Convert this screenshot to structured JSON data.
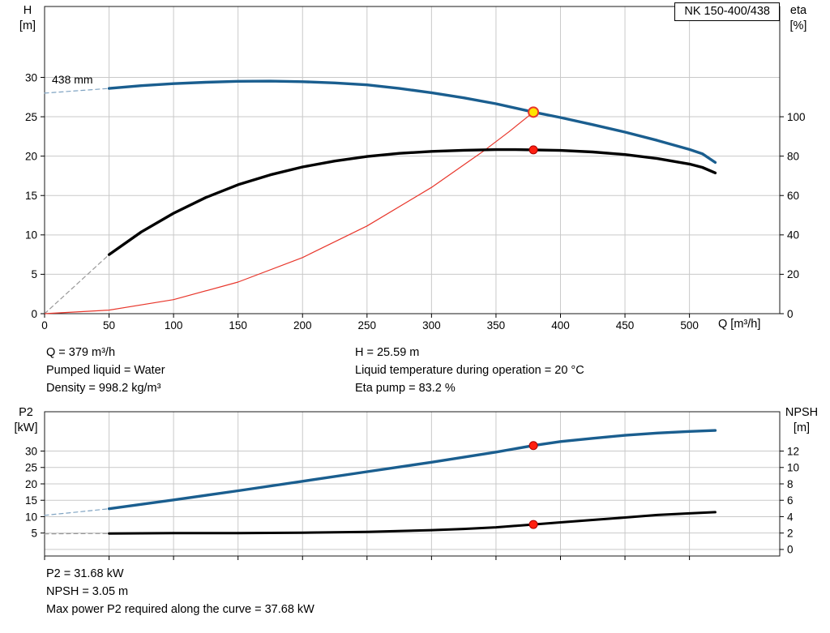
{
  "title_box": {
    "label": "NK 150-400/438"
  },
  "axes_labels": {
    "h": "H",
    "h_unit": "[m]",
    "eta": "eta",
    "eta_unit": "[%]",
    "x": "Q [m³/h]",
    "p2": "P2",
    "p2_unit": "[kW]",
    "npsh": "NPSH",
    "npsh_unit": "[m]"
  },
  "info_top": {
    "left": [
      "Q = 379 m³/h",
      "Pumped liquid = Water",
      "Density = 998.2 kg/m³"
    ],
    "right": [
      "H = 25.59 m",
      "Liquid temperature during operation = 20 °C",
      "Eta pump = 83.2 %"
    ]
  },
  "info_bottom": [
    "P2 = 31.68 kW",
    "NPSH = 3.05 m",
    "Max power P2 required along the curve = 37.68 kW"
  ],
  "colors": {
    "curve_blue": "#1a5e8f",
    "curve_black": "#000000",
    "system_curve_red": "#e8362b",
    "marker_red": "#ff1f10",
    "marker_yellow": "#ffe400",
    "grid": "#c9c9c9",
    "border": "#1a1a1a",
    "dash_blue": "#7fa3c2",
    "dash_gray": "#999999"
  },
  "chart_data": [
    {
      "type": "line",
      "name": "head-efficiency-chart",
      "title": "NK 150-400/438",
      "x_axis": {
        "label": "Q [m³/h]",
        "min": 0,
        "max": 570,
        "ticks": [
          0,
          50,
          100,
          150,
          200,
          250,
          300,
          350,
          400,
          450,
          500
        ],
        "show_labels": true
      },
      "y_left": {
        "label": "H [m]",
        "min": 0,
        "max": 39,
        "ticks": [
          0,
          5,
          10,
          15,
          20,
          25,
          30
        ]
      },
      "y_right": {
        "label": "eta [%]",
        "min": 0,
        "max": 156,
        "ticks": [
          0,
          20,
          40,
          60,
          80,
          100
        ]
      },
      "annotation": {
        "text": "438 mm"
      },
      "series": [
        {
          "name": "head-curve-dashed-extension",
          "axis": "left",
          "color": "#7fa3c2",
          "width": 1.2,
          "dash": "5 4",
          "points": [
            [
              0,
              28.0
            ],
            [
              25,
              28.3
            ],
            [
              50,
              28.6
            ]
          ]
        },
        {
          "name": "eta-curve-dashed-extension",
          "axis": "right",
          "color": "#999999",
          "width": 1.2,
          "dash": "5 4",
          "points": [
            [
              0,
              0
            ],
            [
              25,
              15
            ],
            [
              50,
              30
            ]
          ]
        },
        {
          "name": "system-curve",
          "axis": "left",
          "color": "#e8362b",
          "width": 1.2,
          "points": [
            [
              0,
              0
            ],
            [
              50,
              0.45
            ],
            [
              100,
              1.78
            ],
            [
              150,
              4.01
            ],
            [
              200,
              7.12
            ],
            [
              250,
              11.13
            ],
            [
              300,
              16.03
            ],
            [
              340,
              20.6
            ],
            [
              360,
              23.08
            ],
            [
              379,
              25.59
            ]
          ]
        },
        {
          "name": "eta-curve",
          "axis": "right",
          "color": "#000000",
          "width": 3.4,
          "points": [
            [
              50,
              30
            ],
            [
              75,
              41.5
            ],
            [
              100,
              51
            ],
            [
              125,
              59
            ],
            [
              150,
              65.5
            ],
            [
              175,
              70.5
            ],
            [
              200,
              74.5
            ],
            [
              225,
              77.5
            ],
            [
              250,
              79.8
            ],
            [
              275,
              81.4
            ],
            [
              300,
              82.4
            ],
            [
              325,
              83.0
            ],
            [
              350,
              83.3
            ],
            [
              365,
              83.3
            ],
            [
              379,
              83.2
            ],
            [
              400,
              82.9
            ],
            [
              425,
              82.1
            ],
            [
              450,
              80.8
            ],
            [
              475,
              78.8
            ],
            [
              500,
              76.0
            ],
            [
              510,
              74.3
            ],
            [
              520,
              71.5
            ]
          ]
        },
        {
          "name": "head-curve",
          "axis": "left",
          "color": "#1a5e8f",
          "width": 3.4,
          "points": [
            [
              50,
              28.6
            ],
            [
              75,
              28.95
            ],
            [
              100,
              29.2
            ],
            [
              125,
              29.38
            ],
            [
              150,
              29.5
            ],
            [
              175,
              29.52
            ],
            [
              200,
              29.45
            ],
            [
              225,
              29.3
            ],
            [
              250,
              29.05
            ],
            [
              275,
              28.6
            ],
            [
              300,
              28.05
            ],
            [
              325,
              27.4
            ],
            [
              350,
              26.65
            ],
            [
              379,
              25.59
            ],
            [
              400,
              24.9
            ],
            [
              425,
              24.0
            ],
            [
              450,
              23.05
            ],
            [
              475,
              22.0
            ],
            [
              500,
              20.85
            ],
            [
              510,
              20.3
            ],
            [
              520,
              19.2
            ]
          ]
        }
      ],
      "markers": [
        {
          "name": "duty-point-eta",
          "axis": "right",
          "x": 379,
          "y": 83.2,
          "r": 5,
          "fill": "#ff1f10",
          "stroke": "#aa0000",
          "stroke_width": 1
        },
        {
          "name": "duty-point-head",
          "axis": "left",
          "x": 379,
          "y": 25.59,
          "r": 6,
          "fill": "#ffe400",
          "stroke": "#e8362b",
          "stroke_width": 2
        }
      ],
      "duty_point": {
        "q": 379,
        "h": 25.59,
        "eta": 83.2
      }
    },
    {
      "type": "line",
      "name": "power-npsh-chart",
      "x_axis": {
        "label": "Q [m³/h]",
        "min": 0,
        "max": 570,
        "ticks": [
          0,
          50,
          100,
          150,
          200,
          250,
          300,
          350,
          400,
          450,
          500
        ],
        "show_labels": false
      },
      "y_left": {
        "label": "P2 [kW]",
        "min": -2,
        "max": 42,
        "ticks": [
          5,
          10,
          15,
          20,
          25,
          30
        ],
        "grid": [
          0,
          5,
          10,
          15,
          20,
          25,
          30
        ]
      },
      "y_right": {
        "label": "NPSH [m]",
        "min": -0.8,
        "max": 16.8,
        "ticks": [
          0,
          2,
          4,
          6,
          8,
          10,
          12
        ]
      },
      "series": [
        {
          "name": "p2-curve-dashed-extension",
          "axis": "left",
          "color": "#7fa3c2",
          "width": 1.2,
          "dash": "5 4",
          "points": [
            [
              0,
              10.4
            ],
            [
              25,
              11.4
            ],
            [
              50,
              12.4
            ]
          ]
        },
        {
          "name": "npsh-curve-dashed-extension",
          "axis": "right",
          "color": "#999999",
          "width": 1.2,
          "dash": "5 4",
          "points": [
            [
              0,
              1.9
            ],
            [
              25,
              1.93
            ],
            [
              50,
              1.95
            ]
          ]
        },
        {
          "name": "p2-curve",
          "axis": "left",
          "color": "#1a5e8f",
          "width": 3.4,
          "points": [
            [
              50,
              12.4
            ],
            [
              100,
              15.1
            ],
            [
              150,
              17.9
            ],
            [
              200,
              20.8
            ],
            [
              250,
              23.7
            ],
            [
              300,
              26.6
            ],
            [
              350,
              29.7
            ],
            [
              379,
              31.68
            ],
            [
              400,
              32.9
            ],
            [
              425,
              33.9
            ],
            [
              450,
              34.8
            ],
            [
              475,
              35.5
            ],
            [
              500,
              36.0
            ],
            [
              520,
              36.3
            ]
          ]
        },
        {
          "name": "npsh-curve",
          "axis": "right",
          "color": "#000000",
          "width": 3,
          "points": [
            [
              50,
              1.95
            ],
            [
              100,
              2.0
            ],
            [
              150,
              2.0
            ],
            [
              200,
              2.05
            ],
            [
              250,
              2.15
            ],
            [
              300,
              2.35
            ],
            [
              325,
              2.5
            ],
            [
              350,
              2.7
            ],
            [
              379,
              3.05
            ],
            [
              400,
              3.3
            ],
            [
              425,
              3.6
            ],
            [
              450,
              3.9
            ],
            [
              475,
              4.2
            ],
            [
              500,
              4.4
            ],
            [
              520,
              4.55
            ]
          ]
        }
      ],
      "markers": [
        {
          "name": "duty-point-p2",
          "axis": "left",
          "x": 379,
          "y": 31.68,
          "r": 5,
          "fill": "#ff1f10",
          "stroke": "#aa0000",
          "stroke_width": 1
        },
        {
          "name": "duty-point-npsh",
          "axis": "right",
          "x": 379,
          "y": 3.05,
          "r": 5,
          "fill": "#ff1f10",
          "stroke": "#aa0000",
          "stroke_width": 1
        }
      ],
      "duty_point": {
        "q": 379,
        "p2": 31.68,
        "npsh": 3.05,
        "max_p2_along_curve": 37.68
      }
    }
  ]
}
